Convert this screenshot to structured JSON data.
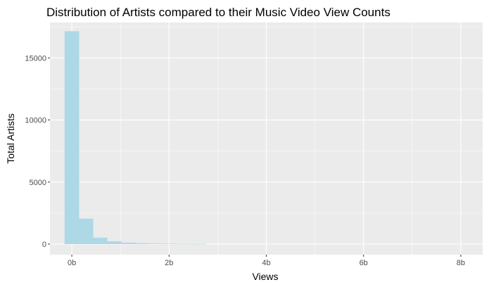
{
  "chart_data": {
    "type": "bar",
    "title": "Distribution of Artists compared to their Music Video View Counts",
    "xlabel": "Views",
    "ylabel": "Total Artists",
    "xlim": [
      -0.45,
      8.45
    ],
    "ylim": [
      -850,
      17850
    ],
    "x_ticks": [
      {
        "value": 0,
        "label": "0b"
      },
      {
        "value": 2,
        "label": "2b"
      },
      {
        "value": 4,
        "label": "4b"
      },
      {
        "value": 6,
        "label": "6b"
      },
      {
        "value": 8,
        "label": "8b"
      }
    ],
    "y_ticks": [
      {
        "value": 0,
        "label": "0"
      },
      {
        "value": 5000,
        "label": "5000"
      },
      {
        "value": 10000,
        "label": "10000"
      },
      {
        "value": 15000,
        "label": "15000"
      }
    ],
    "bins": [
      {
        "x0": -0.15,
        "x1": 0.15,
        "count": 17150
      },
      {
        "x0": 0.15,
        "x1": 0.44,
        "count": 2050
      },
      {
        "x0": 0.44,
        "x1": 0.73,
        "count": 520
      },
      {
        "x0": 0.73,
        "x1": 1.02,
        "count": 230
      },
      {
        "x0": 1.02,
        "x1": 1.31,
        "count": 120
      },
      {
        "x0": 1.31,
        "x1": 1.6,
        "count": 70
      },
      {
        "x0": 1.6,
        "x1": 1.89,
        "count": 45
      },
      {
        "x0": 1.89,
        "x1": 2.18,
        "count": 30
      },
      {
        "x0": 2.18,
        "x1": 2.47,
        "count": 20
      },
      {
        "x0": 2.47,
        "x1": 2.76,
        "count": 12
      }
    ],
    "grid": true,
    "colors": {
      "panel": "#ebebeb",
      "grid_major": "#ffffff",
      "bar_fill": "#add8e6",
      "tick": "#333333"
    }
  }
}
